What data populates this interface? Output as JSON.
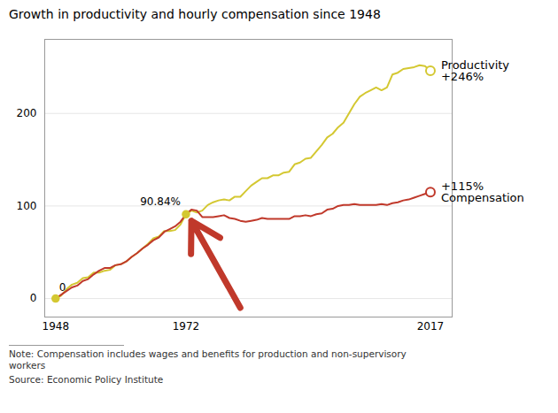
{
  "chart_data": {
    "type": "line",
    "title": "Growth in productivity and hourly compensation since 1948",
    "note": "Note: Compensation includes wages and benefits for production and non-supervisory\nworkers",
    "source": "Source: Economic Policy Institute",
    "x": [
      1948,
      1949,
      1950,
      1951,
      1952,
      1953,
      1954,
      1955,
      1956,
      1957,
      1958,
      1959,
      1960,
      1961,
      1962,
      1963,
      1964,
      1965,
      1966,
      1967,
      1968,
      1969,
      1970,
      1971,
      1972,
      1973,
      1974,
      1975,
      1976,
      1977,
      1978,
      1979,
      1980,
      1981,
      1982,
      1983,
      1984,
      1985,
      1986,
      1987,
      1988,
      1989,
      1990,
      1991,
      1992,
      1993,
      1994,
      1995,
      1996,
      1997,
      1998,
      1999,
      2000,
      2001,
      2002,
      2003,
      2004,
      2005,
      2006,
      2007,
      2008,
      2009,
      2010,
      2011,
      2012,
      2013,
      2014,
      2015,
      2016,
      2017
    ],
    "series": [
      {
        "name": "Productivity\n+246%",
        "color": "#d4c832",
        "values": [
          0,
          3,
          10,
          15,
          17,
          22,
          23,
          28,
          28,
          30,
          31,
          36,
          37,
          40,
          45,
          49,
          54,
          59,
          65,
          67,
          73,
          73,
          74,
          80,
          91,
          95,
          93,
          95,
          101,
          104,
          106,
          107,
          106,
          110,
          110,
          116,
          122,
          126,
          130,
          130,
          133,
          133,
          136,
          137,
          145,
          147,
          151,
          152,
          159,
          166,
          174,
          178,
          185,
          190,
          200,
          210,
          218,
          222,
          225,
          228,
          225,
          228,
          242,
          244,
          248,
          249,
          250,
          252,
          251,
          246
        ]
      },
      {
        "name": "+115%\nCompensation",
        "color": "#c0392b",
        "values": [
          0,
          4,
          8,
          12,
          14,
          19,
          21,
          26,
          30,
          33,
          33,
          36,
          37,
          40,
          45,
          49,
          54,
          58,
          63,
          66,
          72,
          75,
          78,
          83,
          91,
          96,
          95,
          88,
          88,
          88,
          89,
          90,
          87,
          86,
          84,
          83,
          84,
          85,
          87,
          86,
          86,
          86,
          86,
          86,
          89,
          89,
          90,
          89,
          91,
          92,
          96,
          97,
          100,
          101,
          101,
          102,
          101,
          101,
          101,
          101,
          102,
          101,
          103,
          104,
          106,
          107,
          109,
          111,
          113,
          115
        ]
      }
    ],
    "annotations": [
      {
        "text": "0",
        "x": 1948,
        "y": 0
      },
      {
        "text": "90.84%",
        "x": 1972,
        "y": 91
      }
    ],
    "arrows": [
      {
        "x1": 1982,
        "y1": -10,
        "x2": 1973,
        "y2": 84,
        "color": "#c0392b"
      }
    ],
    "xlim": [
      1946,
      2021
    ],
    "ylim": [
      -20,
      280
    ],
    "xticks": [
      1948,
      1972,
      2017
    ],
    "yticks": [
      0,
      100,
      200
    ],
    "grid": true
  }
}
